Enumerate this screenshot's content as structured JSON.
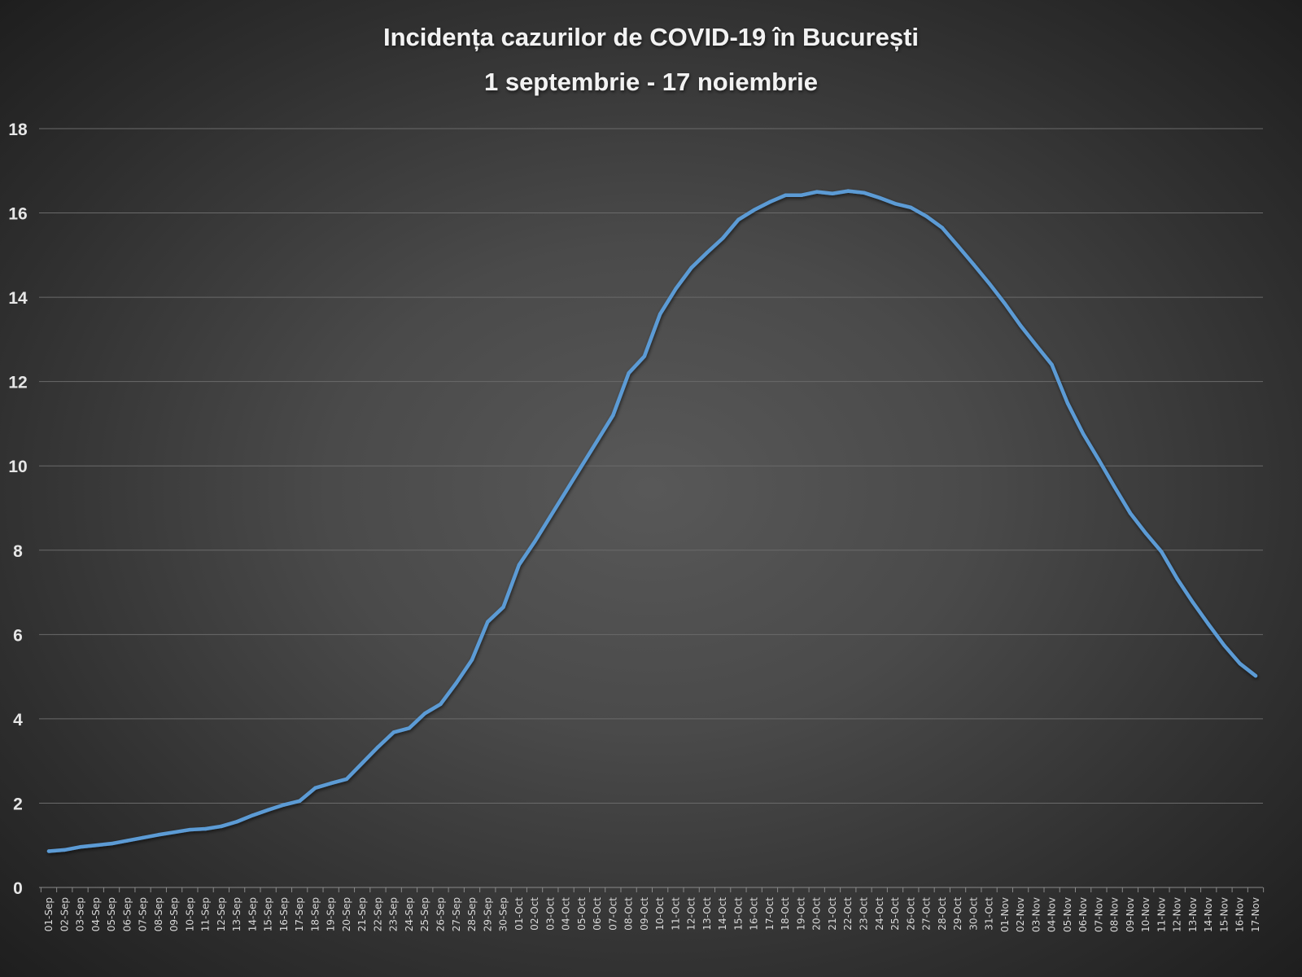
{
  "chart_data": {
    "type": "line",
    "title": "Incidența cazurilor de COVID-19 în București",
    "subtitle": "1 septembrie - 17 noiembrie",
    "xlabel": "",
    "ylabel": "",
    "ylim": [
      0,
      18
    ],
    "yticks": [
      0,
      2,
      4,
      6,
      8,
      10,
      12,
      14,
      16,
      18
    ],
    "grid": true,
    "line_color": "#5b9bd5",
    "categories": [
      "01-Sep",
      "02-Sep",
      "03-Sep",
      "04-Sep",
      "05-Sep",
      "06-Sep",
      "07-Sep",
      "08-Sep",
      "09-Sep",
      "10-Sep",
      "11-Sep",
      "12-Sep",
      "13-Sep",
      "14-Sep",
      "15-Sep",
      "16-Sep",
      "17-Sep",
      "18-Sep",
      "19-Sep",
      "20-Sep",
      "21-Sep",
      "22-Sep",
      "23-Sep",
      "24-Sep",
      "25-Sep",
      "26-Sep",
      "27-Sep",
      "28-Sep",
      "29-Sep",
      "30-Sep",
      "01-Oct",
      "02-Oct",
      "03-Oct",
      "04-Oct",
      "05-Oct",
      "06-Oct",
      "07-Oct",
      "08-Oct",
      "09-Oct",
      "10-Oct",
      "11-Oct",
      "12-Oct",
      "13-Oct",
      "14-Oct",
      "15-Oct",
      "16-Oct",
      "17-Oct",
      "18-Oct",
      "19-Oct",
      "20-Oct",
      "21-Oct",
      "22-Oct",
      "23-Oct",
      "24-Oct",
      "25-Oct",
      "26-Oct",
      "27-Oct",
      "28-Oct",
      "29-Oct",
      "30-Oct",
      "31-Oct",
      "01-Nov",
      "02-Nov",
      "03-Nov",
      "04-Nov",
      "05-Nov",
      "06-Nov",
      "07-Nov",
      "08-Nov",
      "09-Nov",
      "10-Nov",
      "11-Nov",
      "12-Nov",
      "13-Nov",
      "14-Nov",
      "15-Nov",
      "16-Nov",
      "17-Nov"
    ],
    "values": [
      0.86,
      0.89,
      0.96,
      1.0,
      1.04,
      1.11,
      1.18,
      1.25,
      1.31,
      1.37,
      1.39,
      1.45,
      1.56,
      1.71,
      1.84,
      1.96,
      2.05,
      2.36,
      2.47,
      2.57,
      2.95,
      3.33,
      3.68,
      3.78,
      4.13,
      4.35,
      4.85,
      5.4,
      6.3,
      6.65,
      7.65,
      8.2,
      8.8,
      9.4,
      10.0,
      10.6,
      11.2,
      12.2,
      12.6,
      13.6,
      14.2,
      14.7,
      15.06,
      15.4,
      15.84,
      16.07,
      16.26,
      16.42,
      16.42,
      16.5,
      16.46,
      16.52,
      16.48,
      16.36,
      16.22,
      16.13,
      15.92,
      15.65,
      15.22,
      14.78,
      14.33,
      13.85,
      13.33,
      12.86,
      12.4,
      11.49,
      10.76,
      10.14,
      9.5,
      8.88,
      8.4,
      7.96,
      7.32,
      6.76,
      6.24,
      5.74,
      5.31,
      5.02
    ]
  }
}
